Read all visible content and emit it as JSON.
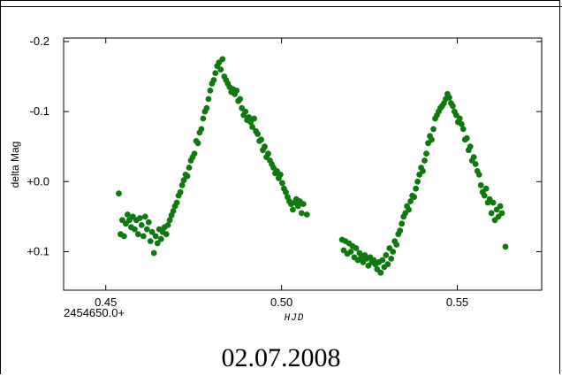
{
  "chart_data": {
    "type": "scatter",
    "title": "",
    "xlabel": "HJD",
    "ylabel": "delta Mag",
    "x_offset_label": "2454650.0+",
    "xlim": [
      0.438,
      0.574
    ],
    "ylim": [
      -0.205,
      0.155
    ],
    "y_inverted": true,
    "x_ticks": [
      {
        "value": 0.45,
        "label": "0.45"
      },
      {
        "value": 0.5,
        "label": "0.50"
      },
      {
        "value": 0.55,
        "label": "0.55"
      }
    ],
    "y_ticks": [
      {
        "value": -0.2,
        "label": "-0.2"
      },
      {
        "value": -0.1,
        "label": "-0.1"
      },
      {
        "value": 0.0,
        "label": "+0.0"
      },
      {
        "value": 0.1,
        "label": "+0.1"
      }
    ],
    "grid": false,
    "point_color": "#0e7a0e",
    "series": [
      {
        "points": [
          [
            0.4537,
            0.017
          ],
          [
            0.4542,
            0.075
          ],
          [
            0.4547,
            0.055
          ],
          [
            0.4552,
            0.078
          ],
          [
            0.4557,
            0.06
          ],
          [
            0.4562,
            0.047
          ],
          [
            0.4567,
            0.055
          ],
          [
            0.4572,
            0.065
          ],
          [
            0.4577,
            0.05
          ],
          [
            0.4582,
            0.068
          ],
          [
            0.4587,
            0.055
          ],
          [
            0.4592,
            0.075
          ],
          [
            0.4597,
            0.052
          ],
          [
            0.4602,
            0.062
          ],
          [
            0.4607,
            0.078
          ],
          [
            0.4612,
            0.05
          ],
          [
            0.4617,
            0.068
          ],
          [
            0.4622,
            0.058
          ],
          [
            0.4627,
            0.085
          ],
          [
            0.4632,
            0.072
          ],
          [
            0.4637,
            0.102
          ],
          [
            0.4642,
            0.078
          ],
          [
            0.4647,
            0.088
          ],
          [
            0.4652,
            0.068
          ],
          [
            0.4657,
            0.082
          ],
          [
            0.4662,
            0.072
          ],
          [
            0.4667,
            0.065
          ],
          [
            0.4672,
            0.075
          ],
          [
            0.4677,
            0.062
          ],
          [
            0.4682,
            0.055
          ],
          [
            0.4687,
            0.048
          ],
          [
            0.4692,
            0.042
          ],
          [
            0.4697,
            0.035
          ],
          [
            0.4702,
            0.03
          ],
          [
            0.4707,
            0.02
          ],
          [
            0.4712,
            0.015
          ],
          [
            0.4717,
            0.005
          ],
          [
            0.4722,
            -0.002
          ],
          [
            0.4727,
            -0.01
          ],
          [
            0.4732,
            -0.008
          ],
          [
            0.4737,
            -0.02
          ],
          [
            0.4742,
            -0.03
          ],
          [
            0.4747,
            -0.035
          ],
          [
            0.4752,
            -0.04
          ],
          [
            0.4757,
            -0.058
          ],
          [
            0.4762,
            -0.055
          ],
          [
            0.4767,
            -0.07
          ],
          [
            0.4772,
            -0.075
          ],
          [
            0.4777,
            -0.09
          ],
          [
            0.4782,
            -0.1
          ],
          [
            0.4787,
            -0.105
          ],
          [
            0.4792,
            -0.118
          ],
          [
            0.4797,
            -0.13
          ],
          [
            0.4802,
            -0.14
          ],
          [
            0.4807,
            -0.145
          ],
          [
            0.4812,
            -0.155
          ],
          [
            0.4817,
            -0.165
          ],
          [
            0.4822,
            -0.17
          ],
          [
            0.4827,
            -0.16
          ],
          [
            0.4832,
            -0.175
          ],
          [
            0.4837,
            -0.15
          ],
          [
            0.4842,
            -0.145
          ],
          [
            0.4847,
            -0.14
          ],
          [
            0.4852,
            -0.135
          ],
          [
            0.4857,
            -0.128
          ],
          [
            0.4862,
            -0.132
          ],
          [
            0.4867,
            -0.125
          ],
          [
            0.4872,
            -0.13
          ],
          [
            0.4877,
            -0.115
          ],
          [
            0.4882,
            -0.118
          ],
          [
            0.4887,
            -0.105
          ],
          [
            0.4892,
            -0.095
          ],
          [
            0.4897,
            -0.1
          ],
          [
            0.4902,
            -0.088
          ],
          [
            0.4907,
            -0.092
          ],
          [
            0.4912,
            -0.085
          ],
          [
            0.4917,
            -0.078
          ],
          [
            0.4922,
            -0.09
          ],
          [
            0.4927,
            -0.072
          ],
          [
            0.4932,
            -0.068
          ],
          [
            0.4937,
            -0.058
          ],
          [
            0.4942,
            -0.06
          ],
          [
            0.4947,
            -0.045
          ],
          [
            0.4952,
            -0.05
          ],
          [
            0.4957,
            -0.035
          ],
          [
            0.4962,
            -0.04
          ],
          [
            0.4967,
            -0.03
          ],
          [
            0.4972,
            -0.025
          ],
          [
            0.4977,
            -0.02
          ],
          [
            0.4982,
            -0.012
          ],
          [
            0.4987,
            -0.015
          ],
          [
            0.4992,
            -0.005
          ],
          [
            0.4997,
            -0.01
          ],
          [
            0.5002,
            0.002
          ],
          [
            0.5007,
            0.01
          ],
          [
            0.5012,
            0.015
          ],
          [
            0.5017,
            0.022
          ],
          [
            0.5022,
            0.028
          ],
          [
            0.5027,
            0.032
          ],
          [
            0.5032,
            0.04
          ],
          [
            0.5037,
            0.03
          ],
          [
            0.5042,
            0.025
          ],
          [
            0.5047,
            0.035
          ],
          [
            0.5052,
            0.028
          ],
          [
            0.5057,
            0.045
          ],
          [
            0.5062,
            0.032
          ],
          [
            0.5072,
            0.047
          ],
          [
            0.5172,
            0.083
          ],
          [
            0.5177,
            0.098
          ],
          [
            0.5182,
            0.085
          ],
          [
            0.5187,
            0.103
          ],
          [
            0.5192,
            0.088
          ],
          [
            0.5197,
            0.1
          ],
          [
            0.5202,
            0.092
          ],
          [
            0.5207,
            0.108
          ],
          [
            0.5212,
            0.095
          ],
          [
            0.5217,
            0.112
          ],
          [
            0.5222,
            0.102
          ],
          [
            0.5227,
            0.108
          ],
          [
            0.5232,
            0.115
          ],
          [
            0.5237,
            0.105
          ],
          [
            0.5242,
            0.11
          ],
          [
            0.5247,
            0.12
          ],
          [
            0.5252,
            0.108
          ],
          [
            0.5257,
            0.115
          ],
          [
            0.5262,
            0.112
          ],
          [
            0.5267,
            0.118
          ],
          [
            0.5272,
            0.125
          ],
          [
            0.5277,
            0.115
          ],
          [
            0.5282,
            0.13
          ],
          [
            0.5287,
            0.112
          ],
          [
            0.5292,
            0.122
          ],
          [
            0.5297,
            0.105
          ],
          [
            0.5302,
            0.118
          ],
          [
            0.5307,
            0.095
          ],
          [
            0.5312,
            0.11
          ],
          [
            0.5317,
            0.1
          ],
          [
            0.5322,
            0.085
          ],
          [
            0.5327,
            0.09
          ],
          [
            0.5332,
            0.075
          ],
          [
            0.5337,
            0.07
          ],
          [
            0.5342,
            0.06
          ],
          [
            0.5347,
            0.05
          ],
          [
            0.5352,
            0.045
          ],
          [
            0.5357,
            0.035
          ],
          [
            0.5362,
            0.04
          ],
          [
            0.5367,
            0.028
          ],
          [
            0.5372,
            0.02
          ],
          [
            0.5377,
            0.022
          ],
          [
            0.5382,
            0.01
          ],
          [
            0.5387,
            0.0
          ],
          [
            0.5392,
            -0.01
          ],
          [
            0.5397,
            -0.02
          ],
          [
            0.5402,
            -0.015
          ],
          [
            0.5407,
            -0.03
          ],
          [
            0.5412,
            -0.04
          ],
          [
            0.5417,
            -0.055
          ],
          [
            0.5422,
            -0.065
          ],
          [
            0.5427,
            -0.06
          ],
          [
            0.5432,
            -0.075
          ],
          [
            0.5437,
            -0.09
          ],
          [
            0.5442,
            -0.095
          ],
          [
            0.5447,
            -0.1
          ],
          [
            0.5452,
            -0.105
          ],
          [
            0.5457,
            -0.108
          ],
          [
            0.5462,
            -0.112
          ],
          [
            0.5467,
            -0.118
          ],
          [
            0.5472,
            -0.125
          ],
          [
            0.5477,
            -0.12
          ],
          [
            0.5482,
            -0.112
          ],
          [
            0.5487,
            -0.108
          ],
          [
            0.5492,
            -0.1
          ],
          [
            0.5497,
            -0.095
          ],
          [
            0.5502,
            -0.085
          ],
          [
            0.5507,
            -0.09
          ],
          [
            0.5512,
            -0.082
          ],
          [
            0.5517,
            -0.075
          ],
          [
            0.5522,
            -0.06
          ],
          [
            0.5527,
            -0.062
          ],
          [
            0.5532,
            -0.045
          ],
          [
            0.5537,
            -0.05
          ],
          [
            0.5542,
            -0.03
          ],
          [
            0.5547,
            -0.035
          ],
          [
            0.5552,
            -0.025
          ],
          [
            0.5557,
            -0.015
          ],
          [
            0.5562,
            -0.01
          ],
          [
            0.5567,
            0.005
          ],
          [
            0.5572,
            0.015
          ],
          [
            0.5577,
            0.02
          ],
          [
            0.5582,
            0.01
          ],
          [
            0.5587,
            0.03
          ],
          [
            0.5592,
            0.025
          ],
          [
            0.5597,
            0.045
          ],
          [
            0.5602,
            0.03
          ],
          [
            0.5607,
            0.055
          ],
          [
            0.5612,
            0.04
          ],
          [
            0.5617,
            0.05
          ],
          [
            0.5622,
            0.035
          ],
          [
            0.5627,
            0.045
          ],
          [
            0.5637,
            0.093
          ]
        ]
      }
    ]
  },
  "caption": {
    "date": "02.07.2008"
  }
}
